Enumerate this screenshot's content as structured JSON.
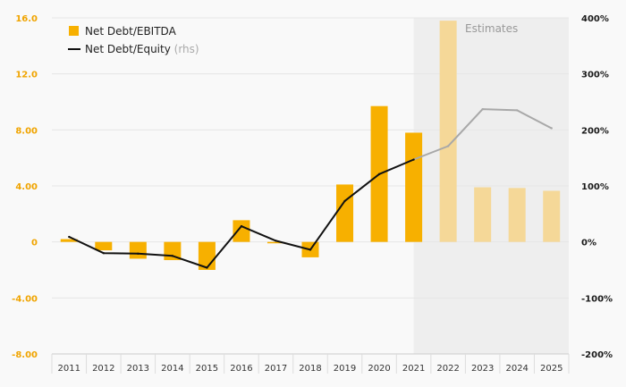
{
  "chart_data": {
    "type": "bar",
    "categories": [
      "2011",
      "2012",
      "2013",
      "2014",
      "2015",
      "2016",
      "2017",
      "2018",
      "2019",
      "2020",
      "2021",
      "2022",
      "2023",
      "2024",
      "2025"
    ],
    "series": [
      {
        "name": "Net Debt/EBITDA",
        "type": "bar",
        "axis": "left",
        "values": [
          0.2,
          -0.6,
          -1.2,
          -1.3,
          -2.0,
          1.55,
          -0.1,
          -1.1,
          4.1,
          9.7,
          7.8,
          15.8,
          3.9,
          3.85,
          3.65
        ]
      },
      {
        "name": "Net Debt/Equity",
        "name_suffix": "(rhs)",
        "type": "line",
        "axis": "right",
        "values": [
          9,
          -20,
          -21,
          -25,
          -46,
          28,
          2,
          -14,
          73,
          121,
          147,
          171,
          237,
          235,
          203
        ]
      }
    ],
    "estimate_start_index": 10,
    "estimates_label": "Estimates",
    "left_axis": {
      "min": -8,
      "max": 16,
      "ticks": [
        "16.0",
        "12.0",
        "8.00",
        "4.00",
        "0",
        "-4.00",
        "-8.00"
      ]
    },
    "right_axis": {
      "min": -200,
      "max": 400,
      "ticks": [
        "400%",
        "300%",
        "200%",
        "100%",
        "0%",
        "-100%",
        "-200%"
      ]
    },
    "legend_position": "top-left",
    "grid": true,
    "colors": {
      "bar": "#f7b000",
      "bar_estimate": "#f5d898",
      "line": "#111111",
      "line_estimate": "#a8a8a8",
      "left_tick": "#f0a400",
      "right_tick": "#1a1a1a",
      "estimate_band": "#eeeeee",
      "grid": "#e6e6e6",
      "background": "#f9f9f9"
    }
  }
}
